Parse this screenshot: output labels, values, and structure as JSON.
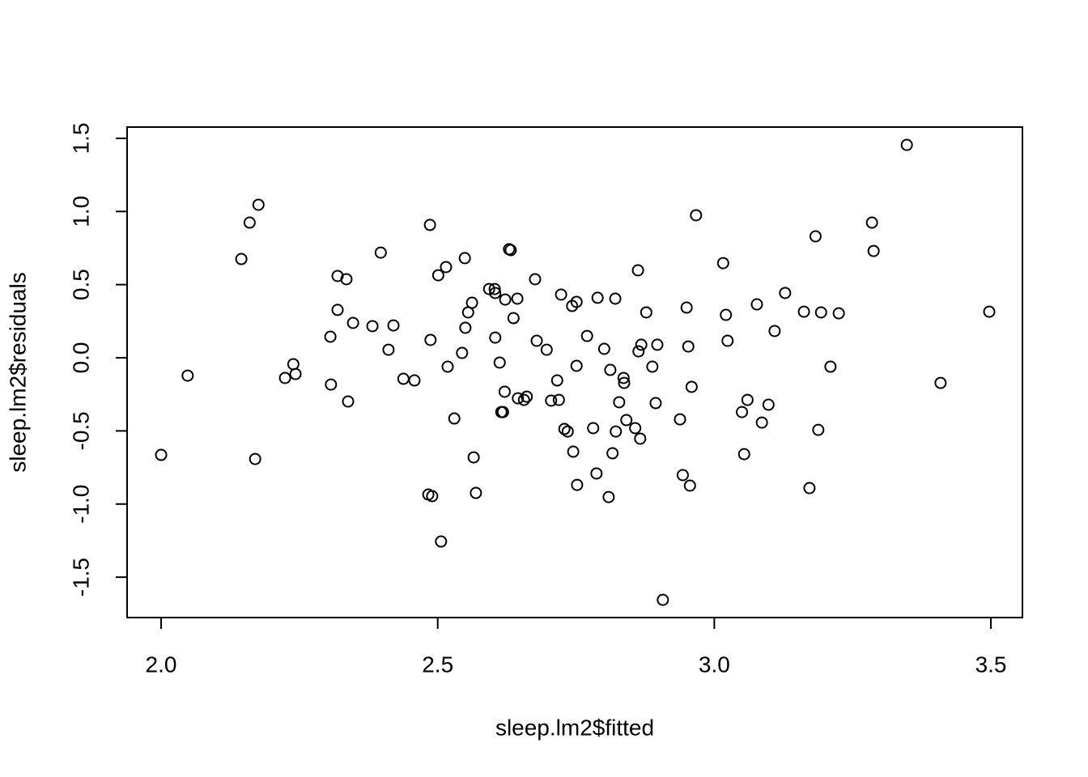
{
  "chart_data": {
    "type": "scatter",
    "xlabel": "sleep.lm2$fitted",
    "ylabel": "sleep.lm2$residuals",
    "color": "#000000",
    "xlim": [
      1.9385,
      3.557
    ],
    "ylim": [
      -1.776,
      1.577
    ],
    "xticks": [
      {
        "value": 2,
        "label": "2.0"
      },
      2.5,
      {
        "value": 3,
        "label": "3.0"
      },
      3.5
    ],
    "yticks": [
      -1.5,
      {
        "value": -1,
        "label": "-1.0"
      },
      -0.5,
      {
        "value": 0,
        "label": "0.0"
      },
      0.5,
      {
        "value": 1,
        "label": "1.0"
      },
      1.5
    ],
    "x": [
      2.0,
      2.048,
      2.145,
      2.16,
      2.176,
      2.17,
      2.224,
      2.239,
      2.243,
      2.306,
      2.307,
      2.319,
      2.319,
      2.335,
      2.338,
      2.347,
      2.382,
      2.397,
      2.411,
      2.42,
      2.438,
      2.458,
      2.483,
      2.486,
      2.487,
      2.49,
      2.501,
      2.506,
      2.515,
      2.518,
      2.53,
      2.544,
      2.549,
      2.55,
      2.555,
      2.562,
      2.565,
      2.569,
      2.593,
      2.603,
      2.604,
      2.604,
      2.612,
      2.615,
      2.618,
      2.621,
      2.622,
      2.629,
      2.632,
      2.637,
      2.644,
      2.645,
      2.656,
      2.661,
      2.676,
      2.679,
      2.697,
      2.705,
      2.716,
      2.719,
      2.723,
      2.729,
      2.735,
      2.743,
      2.745,
      2.751,
      2.751,
      2.752,
      2.77,
      2.781,
      2.787,
      2.789,
      2.801,
      2.809,
      2.812,
      2.816,
      2.821,
      2.822,
      2.828,
      2.836,
      2.837,
      2.841,
      2.857,
      2.862,
      2.863,
      2.866,
      2.868,
      2.877,
      2.888,
      2.894,
      2.897,
      2.907,
      2.938,
      2.943,
      2.95,
      2.953,
      2.956,
      2.959,
      2.967,
      3.016,
      3.021,
      3.024,
      3.05,
      3.054,
      3.06,
      3.077,
      3.086,
      3.098,
      3.109,
      3.128,
      3.162,
      3.172,
      3.183,
      3.188,
      3.193,
      3.21,
      3.225,
      3.285,
      3.288,
      3.348,
      3.409,
      3.497
    ],
    "values": [
      -0.664,
      -0.122,
      0.675,
      0.924,
      1.046,
      -0.692,
      -0.138,
      -0.044,
      -0.111,
      0.144,
      -0.183,
      0.559,
      0.327,
      0.537,
      -0.299,
      0.238,
      0.216,
      0.719,
      0.055,
      0.221,
      -0.144,
      -0.155,
      -0.935,
      0.908,
      0.122,
      -0.946,
      0.564,
      -1.256,
      0.62,
      -0.061,
      -0.415,
      0.033,
      0.681,
      0.205,
      0.31,
      0.376,
      -0.681,
      -0.924,
      0.47,
      0.47,
      0.138,
      0.443,
      -0.033,
      -0.371,
      -0.371,
      -0.232,
      0.398,
      0.742,
      0.736,
      0.271,
      0.404,
      -0.277,
      -0.288,
      -0.266,
      0.537,
      0.116,
      0.055,
      -0.293,
      -0.155,
      -0.288,
      0.432,
      -0.487,
      -0.504,
      0.354,
      -0.642,
      0.382,
      -0.055,
      -0.869,
      0.149,
      -0.481,
      -0.791,
      0.41,
      0.061,
      -0.952,
      -0.083,
      -0.653,
      0.404,
      -0.504,
      -0.304,
      -0.138,
      -0.172,
      -0.426,
      -0.481,
      0.598,
      0.044,
      -0.553,
      0.089,
      0.31,
      -0.061,
      -0.31,
      0.089,
      -1.655,
      -0.421,
      -0.802,
      0.343,
      0.077,
      -0.874,
      -0.199,
      0.974,
      0.647,
      0.293,
      0.116,
      -0.371,
      -0.659,
      -0.288,
      0.365,
      -0.443,
      -0.321,
      0.183,
      0.443,
      0.315,
      -0.891,
      0.83,
      -0.493,
      0.31,
      -0.061,
      0.304,
      0.924,
      0.73,
      1.455,
      -0.172,
      0.315
    ]
  }
}
